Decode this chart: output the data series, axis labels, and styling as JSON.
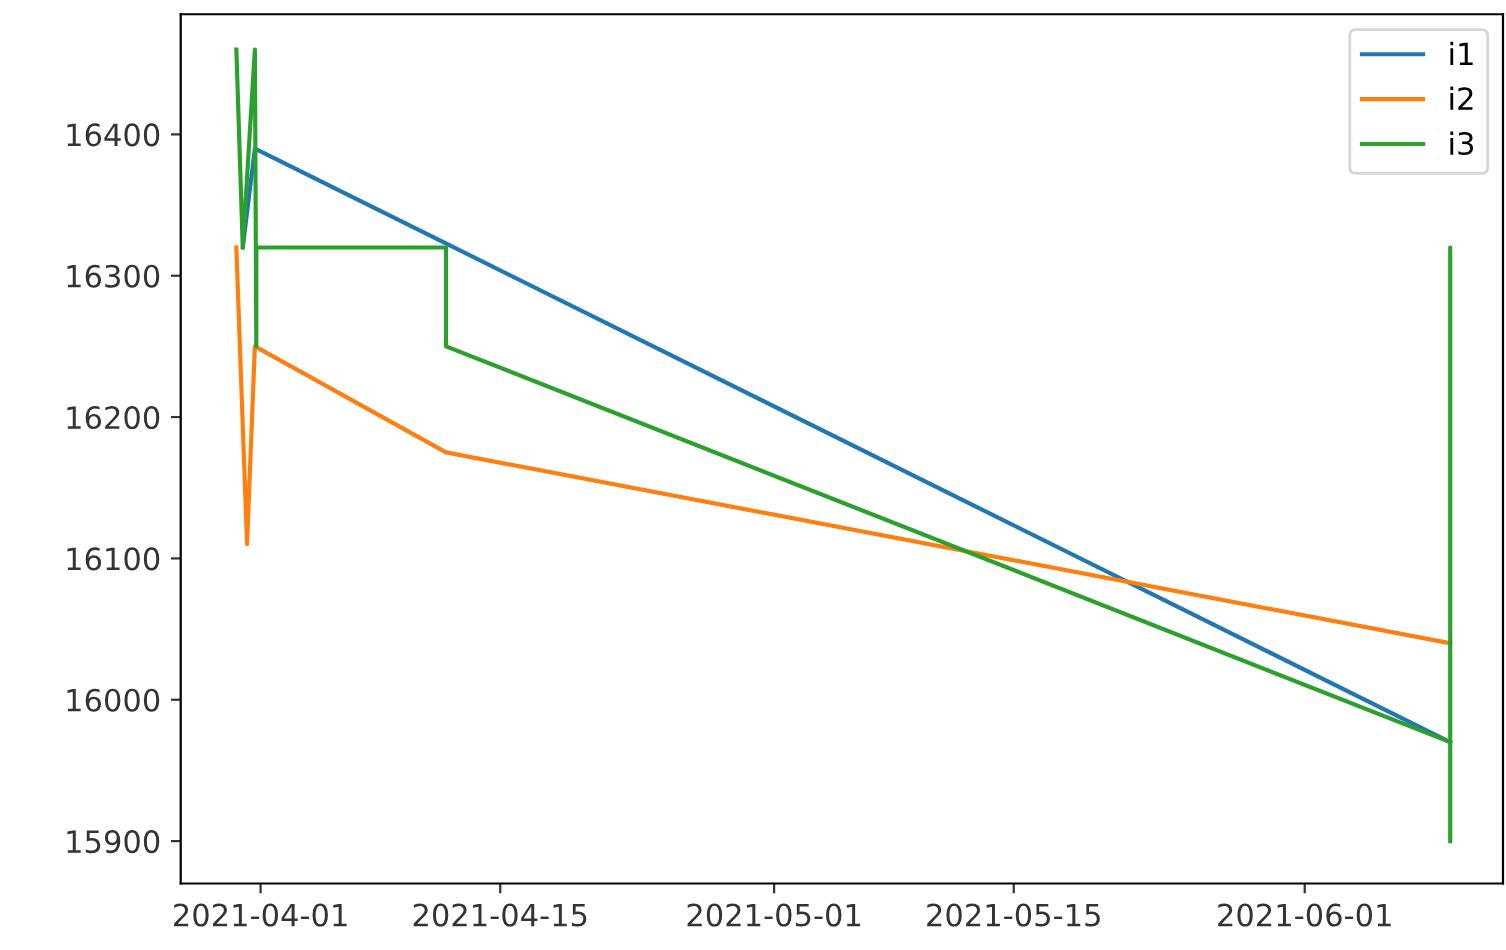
{
  "chart_data": {
    "type": "line",
    "xlim": [
      "2021-03-27T08:00",
      "2021-06-12T14:00"
    ],
    "xticks": [
      {
        "value": "2021-04-01",
        "label": "2021-04-01"
      },
      {
        "value": "2021-04-15",
        "label": "2021-04-15"
      },
      {
        "value": "2021-05-01",
        "label": "2021-05-01"
      },
      {
        "value": "2021-05-15",
        "label": "2021-05-15"
      },
      {
        "value": "2021-06-01",
        "label": "2021-06-01"
      }
    ],
    "ylim": [
      15870,
      16485
    ],
    "yticks": [
      15900,
      16000,
      16100,
      16200,
      16300,
      16400
    ],
    "legend": "top right",
    "grid": false,
    "marker": "none",
    "line_style": "solid",
    "series": [
      {
        "name": "i1",
        "color": "#1f77b4",
        "x": [
          "2021-03-30T23:00",
          "2021-03-31T16:00",
          "2021-06-09T12:00"
        ],
        "values": [
          16320,
          16390,
          15970
        ]
      },
      {
        "name": "i2",
        "color": "#ff7f0e",
        "x": [
          "2021-03-30T14:00",
          "2021-03-31T05:00",
          "2021-03-31T16:00",
          "2021-04-11T20:00",
          "2021-06-09T12:00"
        ],
        "values": [
          16320,
          16110,
          16250,
          16175,
          16040
        ]
      },
      {
        "name": "i3",
        "color": "#2ca02c",
        "x": [
          "2021-03-30T14:00",
          "2021-03-30T23:00",
          "2021-03-31T16:00",
          "2021-03-31T18:00",
          "2021-03-31T18:00",
          "2021-04-11T20:00",
          "2021-04-11T20:00",
          "2021-06-09T12:00",
          "2021-06-09T12:00",
          "2021-06-09T12:00"
        ],
        "values": [
          16460,
          16320,
          16460,
          16250,
          16320,
          16320,
          16250,
          15970,
          16320,
          15900
        ]
      }
    ]
  }
}
